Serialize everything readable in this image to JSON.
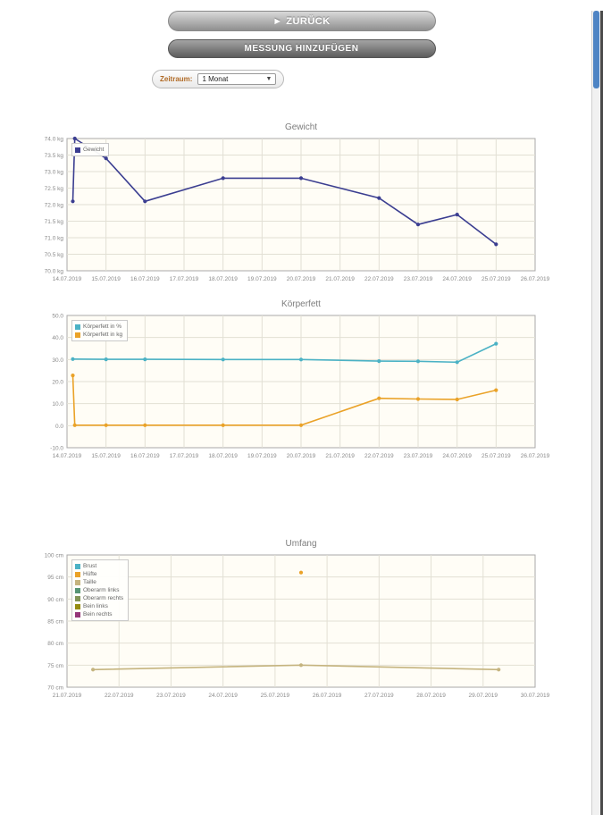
{
  "toolbar": {
    "back_label": "► ZURÜCK",
    "add_label": "MESSUNG HINZUFÜGEN"
  },
  "timeframe": {
    "label": "Zeitraum:",
    "value": "1 Monat"
  },
  "chart_data": [
    {
      "type": "line",
      "title": "Gewicht",
      "plot_bg": "#fffdf6",
      "ylim": [
        70,
        74
      ],
      "ytick_values": [
        74,
        73.5,
        73,
        72.5,
        72,
        71.5,
        71,
        70.5,
        70
      ],
      "ytick_labels": [
        "74.0 kg",
        "73.5 kg",
        "73.0 kg",
        "72.5 kg",
        "72.0 kg",
        "71.5 kg",
        "71.0 kg",
        "70.5 kg",
        "70.0 kg"
      ],
      "xticks": [
        "14.07.2019",
        "15.07.2019",
        "16.07.2019",
        "17.07.2019",
        "18.07.2019",
        "19.07.2019",
        "20.07.2019",
        "21.07.2019",
        "22.07.2019",
        "23.07.2019",
        "24.07.2019",
        "25.07.2019",
        "26.07.2019"
      ],
      "legend_position": "top-left",
      "grid": true,
      "series": [
        {
          "name": "Gewicht",
          "color": "#3b3e91",
          "points": [
            [
              0.15,
              72.1
            ],
            [
              0.2,
              74.0
            ],
            [
              1,
              73.4
            ],
            [
              2,
              72.1
            ],
            [
              4,
              72.8
            ],
            [
              6,
              72.8
            ],
            [
              8,
              72.2
            ],
            [
              9,
              71.4
            ],
            [
              10,
              71.7
            ],
            [
              11,
              70.8
            ]
          ]
        }
      ]
    },
    {
      "type": "line",
      "title": "Körperfett",
      "plot_bg": "#fffdf6",
      "ylim": [
        -10,
        50
      ],
      "ytick_values": [
        50,
        40,
        30,
        20,
        10,
        0,
        -10
      ],
      "ytick_labels": [
        "50.0",
        "40.0",
        "30.0",
        "20.0",
        "10.0",
        "0.0",
        "-10.0"
      ],
      "xticks": [
        "14.07.2019",
        "15.07.2019",
        "16.07.2019",
        "17.07.2019",
        "18.07.2019",
        "19.07.2019",
        "20.07.2019",
        "21.07.2019",
        "22.07.2019",
        "23.07.2019",
        "24.07.2019",
        "25.07.2019",
        "26.07.2019"
      ],
      "legend_position": "top-left",
      "grid": true,
      "series": [
        {
          "name": "Körperfett in %",
          "color": "#4bb2c5",
          "points": [
            [
              0.15,
              30.2
            ],
            [
              1,
              30.1
            ],
            [
              2,
              30.1
            ],
            [
              4,
              30.0
            ],
            [
              6,
              30.0
            ],
            [
              8,
              29.3
            ],
            [
              9,
              29.2
            ],
            [
              10,
              28.8
            ],
            [
              11,
              37.2
            ]
          ]
        },
        {
          "name": "Körperfett in kg",
          "color": "#eaa228",
          "points": [
            [
              0.15,
              22.8
            ],
            [
              0.2,
              0.2
            ],
            [
              1,
              0.2
            ],
            [
              2,
              0.2
            ],
            [
              4,
              0.2
            ],
            [
              6,
              0.2
            ],
            [
              8,
              12.4
            ],
            [
              9,
              12.1
            ],
            [
              10,
              11.9
            ],
            [
              11,
              16.1
            ]
          ]
        }
      ]
    },
    {
      "type": "line",
      "title": "Umfang",
      "plot_bg": "#fffdf6",
      "ylim": [
        70,
        100
      ],
      "ytick_values": [
        100,
        95,
        90,
        85,
        80,
        75,
        70
      ],
      "ytick_labels": [
        "100 cm",
        "95 cm",
        "90 cm",
        "85 cm",
        "80 cm",
        "75 cm",
        "70 cm"
      ],
      "xticks": [
        "21.07.2019",
        "22.07.2019",
        "23.07.2019",
        "24.07.2019",
        "25.07.2019",
        "26.07.2019",
        "27.07.2019",
        "28.07.2019",
        "29.07.2019",
        "30.07.2019"
      ],
      "legend_position": "top-left",
      "grid": true,
      "series": [
        {
          "name": "Brust",
          "color": "#4bb2c5",
          "points": []
        },
        {
          "name": "Hüfte",
          "color": "#eaa228",
          "points": [
            [
              4.5,
              96
            ]
          ]
        },
        {
          "name": "Taille",
          "color": "#c5b47f",
          "points": [
            [
              0.5,
              74
            ],
            [
              4.5,
              75
            ],
            [
              8.3,
              74
            ]
          ]
        },
        {
          "name": "Oberarm links",
          "color": "#579575",
          "points": []
        },
        {
          "name": "Oberarm rechts",
          "color": "#839557",
          "points": []
        },
        {
          "name": "Bein links",
          "color": "#958c12",
          "points": []
        },
        {
          "name": "Bein rechts",
          "color": "#953579",
          "points": []
        }
      ]
    }
  ]
}
